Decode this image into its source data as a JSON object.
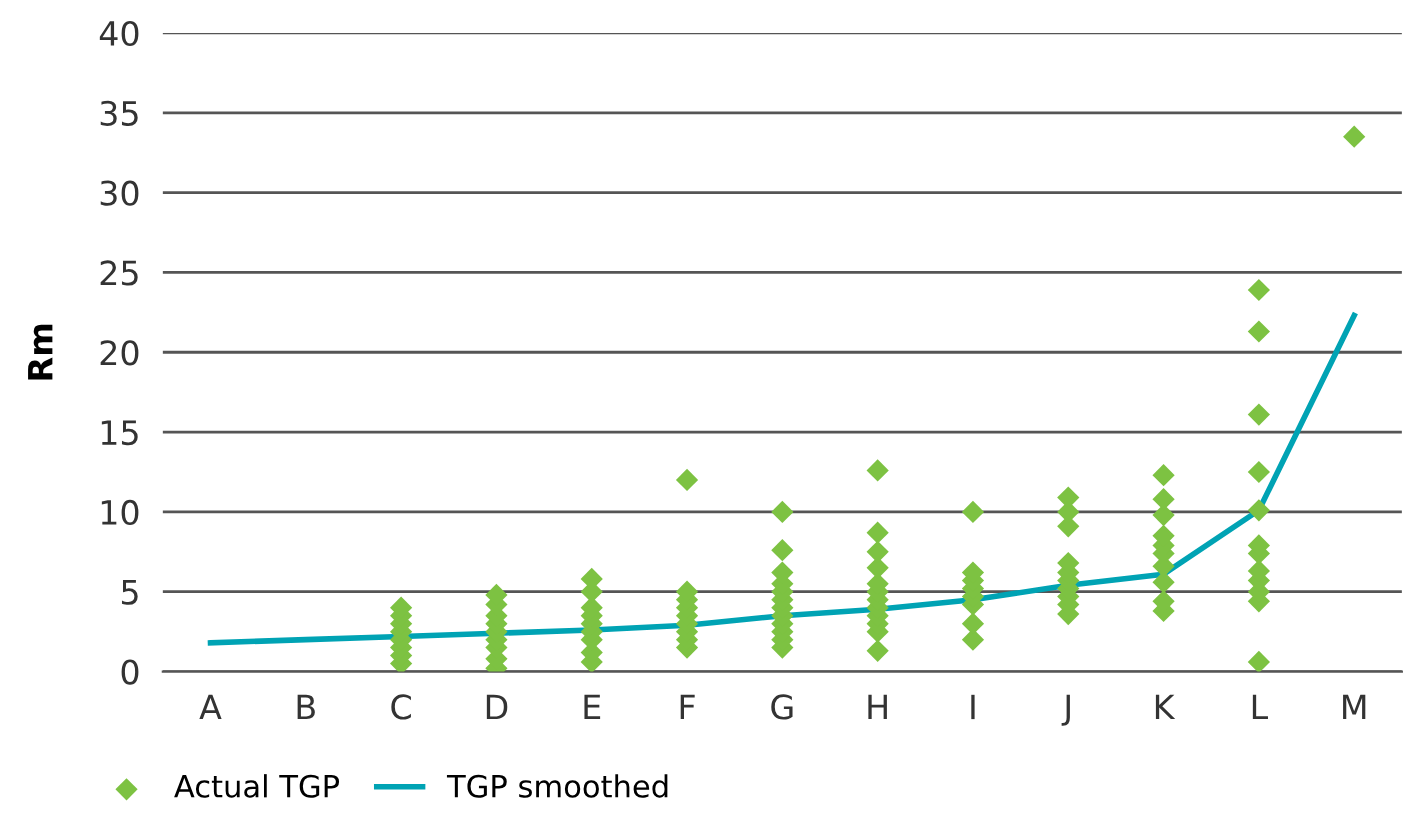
{
  "chart_data": {
    "type": "line",
    "ylabel": "Rm",
    "categories": [
      "A",
      "B",
      "C",
      "D",
      "E",
      "F",
      "G",
      "H",
      "I",
      "J",
      "K",
      "L",
      "M"
    ],
    "series": [
      {
        "name": "Actual TGP",
        "type": "scatter",
        "color": "#7dc242",
        "marker": "diamond",
        "x": [
          "C",
          "C",
          "C",
          "C",
          "C",
          "C",
          "C",
          "C",
          "D",
          "D",
          "D",
          "D",
          "D",
          "D",
          "D",
          "D",
          "D",
          "E",
          "E",
          "E",
          "E",
          "E",
          "E",
          "E",
          "E",
          "E",
          "F",
          "F",
          "F",
          "F",
          "F",
          "F",
          "F",
          "F",
          "F",
          "G",
          "G",
          "G",
          "G",
          "G",
          "G",
          "G",
          "G",
          "G",
          "G",
          "G",
          "G",
          "H",
          "H",
          "H",
          "H",
          "H",
          "H",
          "H",
          "H",
          "H",
          "H",
          "H",
          "H",
          "I",
          "I",
          "I",
          "I",
          "I",
          "I",
          "I",
          "I",
          "J",
          "J",
          "J",
          "J",
          "J",
          "J",
          "J",
          "J",
          "J",
          "J",
          "K",
          "K",
          "K",
          "K",
          "K",
          "K",
          "K",
          "K",
          "K",
          "K",
          "L",
          "L",
          "L",
          "L",
          "L",
          "L",
          "L",
          "L",
          "L",
          "L",
          "L",
          "L",
          "M"
        ],
        "values": [
          0.5,
          1,
          1.5,
          2,
          2.5,
          3,
          3.5,
          4,
          0.2,
          0.8,
          1.5,
          2,
          2.5,
          3,
          3.5,
          4.2,
          4.8,
          0.6,
          1.2,
          2,
          2.5,
          3,
          3.5,
          4,
          5,
          5.8,
          1.5,
          2,
          2.5,
          3,
          3.5,
          4,
          4.5,
          5,
          12,
          1.5,
          2,
          2.5,
          3,
          3.5,
          4,
          4.5,
          5,
          5.5,
          6.2,
          7.6,
          10,
          1.3,
          2.5,
          3,
          3.5,
          4,
          4.5,
          5,
          5.5,
          6.5,
          7.5,
          8.7,
          12.6,
          2,
          3,
          4.2,
          4.7,
          5.2,
          5.7,
          6.2,
          10,
          3.6,
          4.2,
          4.7,
          5.2,
          5.7,
          6.2,
          6.8,
          9.1,
          10,
          10.9,
          3.8,
          4.4,
          5.6,
          6.6,
          7.4,
          7.9,
          8.5,
          9.8,
          10.8,
          12.3,
          0.6,
          4.4,
          5,
          5.7,
          6.3,
          7.4,
          7.9,
          10.1,
          12.5,
          16.1,
          21.3,
          23.9,
          33.5
        ]
      },
      {
        "name": "TGP smoothed",
        "color": "#00a3b4",
        "marker": "none",
        "line_style": "solid",
        "values": [
          1.8,
          2,
          2.2,
          2.4,
          2.6,
          2.9,
          3.5,
          3.9,
          4.5,
          5.4,
          6.1,
          10.1,
          22.3
        ]
      }
    ],
    "ylim": [
      0,
      40
    ],
    "yticks": [
      0,
      5,
      10,
      15,
      20,
      25,
      30,
      35,
      40
    ],
    "grid": "y",
    "legend": "bottom left"
  }
}
